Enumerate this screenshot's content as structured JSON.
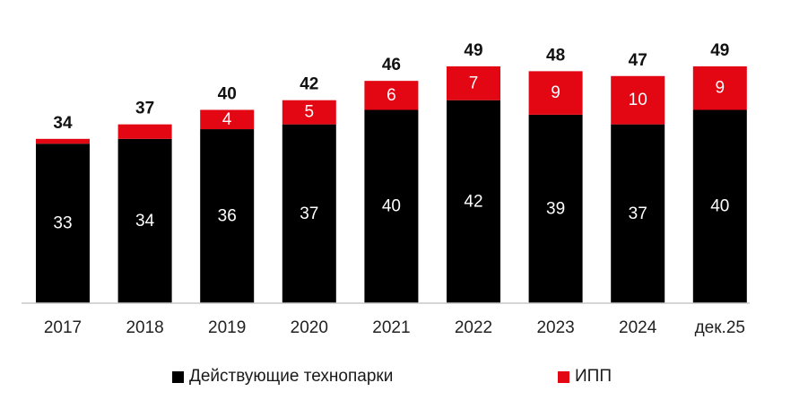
{
  "chart_data": {
    "type": "bar",
    "stacked": true,
    "title": "",
    "xlabel": "",
    "ylabel": "",
    "categories": [
      "2017",
      "2018",
      "2019",
      "2020",
      "2021",
      "2022",
      "2023",
      "2024",
      "дек.25"
    ],
    "series": [
      {
        "name": "Действующие технопарки",
        "color": "#000000",
        "values": [
          33,
          34,
          36,
          37,
          40,
          42,
          39,
          37,
          40
        ],
        "labels": [
          "33",
          "34",
          "36",
          "37",
          "40",
          "42",
          "39",
          "37",
          "40"
        ]
      },
      {
        "name": "ИПП",
        "color": "#e30613",
        "values": [
          1,
          3,
          4,
          5,
          6,
          7,
          9,
          10,
          9
        ],
        "labels": [
          "",
          "",
          "4",
          "5",
          "6",
          "7",
          "9",
          "10",
          "9"
        ]
      }
    ],
    "totals": [
      "34",
      "37",
      "40",
      "42",
      "46",
      "49",
      "48",
      "47",
      "49"
    ],
    "ylim": [
      0,
      49
    ],
    "grid": false,
    "legend_position": "bottom"
  }
}
